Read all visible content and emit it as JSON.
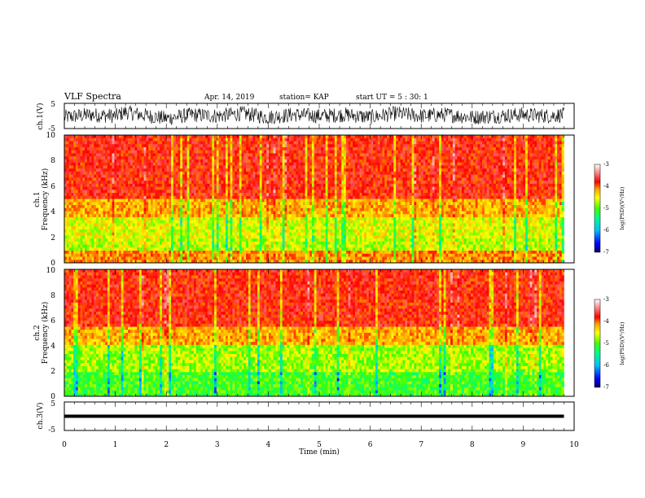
{
  "header": {
    "title": "VLF Spectra",
    "date": "Apr. 14, 2019",
    "station": "station= KAP",
    "start": "start  UT =   5 : 30: 1"
  },
  "chart_data": [
    {
      "type": "line",
      "panel": "ch1-waveform",
      "ylabel": "ch.1(V)",
      "ylim": [
        -5,
        5
      ],
      "yticks": [
        "5",
        "-5"
      ],
      "xlim": [
        0,
        10
      ],
      "series": [
        {
          "values_description_none": null
        }
      ],
      "x": [
        0,
        0.5,
        1,
        1.2,
        1.5,
        2,
        2.5,
        3,
        3.5,
        4,
        4.5,
        5,
        5.5,
        6,
        6.5,
        7,
        7.5,
        8,
        8.5,
        9,
        9.5,
        9.8
      ],
      "y": [
        -0.5,
        0.5,
        0,
        1.5,
        0.5,
        -1,
        0.5,
        0,
        1,
        -0.5,
        0.5,
        0,
        0.5,
        -0.5,
        1,
        0,
        0.5,
        -0.5,
        0,
        0.5,
        0,
        0.5
      ],
      "color": "#000000"
    },
    {
      "type": "heatmap",
      "panel": "ch1-spectrogram",
      "ylabel_top": "ch.1",
      "ylabel": "Frequency  (kHz)",
      "ylim": [
        0,
        10
      ],
      "yticks": [
        "0",
        "2",
        "4",
        "6",
        "8",
        "10"
      ],
      "xlim": [
        0,
        9.8
      ],
      "bands": [
        {
          "from": 0,
          "to": 1,
          "level": -4.3
        },
        {
          "from": 1,
          "to": 2,
          "level": -4.9
        },
        {
          "from": 2,
          "to": 3.5,
          "level": -4.8
        },
        {
          "from": 3.5,
          "to": 5,
          "level": -4.4
        },
        {
          "from": 5,
          "to": 10,
          "level": -3.9
        }
      ]
    },
    {
      "type": "heatmap",
      "panel": "ch2-spectrogram",
      "ylabel_top": "ch.2",
      "ylabel": "Frequency  (kHz)",
      "ylim": [
        0,
        10
      ],
      "yticks": [
        "0",
        "2",
        "4",
        "6",
        "8",
        "10"
      ],
      "xlim": [
        0,
        9.8
      ],
      "bands": [
        {
          "from": 0,
          "to": 2,
          "level": -5.3
        },
        {
          "from": 2,
          "to": 4,
          "level": -5.0
        },
        {
          "from": 4,
          "to": 5.5,
          "level": -4.4
        },
        {
          "from": 5.5,
          "to": 10,
          "level": -3.9
        }
      ]
    },
    {
      "type": "line",
      "panel": "ch3-waveform",
      "ylabel": "ch.3(V)",
      "ylim": [
        -5,
        5
      ],
      "yticks": [
        "5",
        "-5"
      ],
      "xlim": [
        0,
        10
      ],
      "x": [
        0,
        9.8
      ],
      "y": [
        0,
        0
      ],
      "color": "#000000"
    }
  ],
  "colorbar": {
    "label": "log(PSD)(V²/Hz)",
    "range": [
      -7,
      -3
    ],
    "ticks": [
      "-3",
      "-4",
      "-5",
      "-6",
      "-7"
    ],
    "colors": [
      "#000066",
      "#0000ff",
      "#00c0ff",
      "#00ff80",
      "#40ff00",
      "#ffff00",
      "#ffa000",
      "#ff0000",
      "#ff8080",
      "#ffffff"
    ]
  },
  "xaxis": {
    "label": "Time  (min)",
    "ticks": [
      "0",
      "1",
      "2",
      "3",
      "4",
      "5",
      "6",
      "7",
      "8",
      "9",
      "10"
    ],
    "range": [
      0,
      10
    ]
  }
}
